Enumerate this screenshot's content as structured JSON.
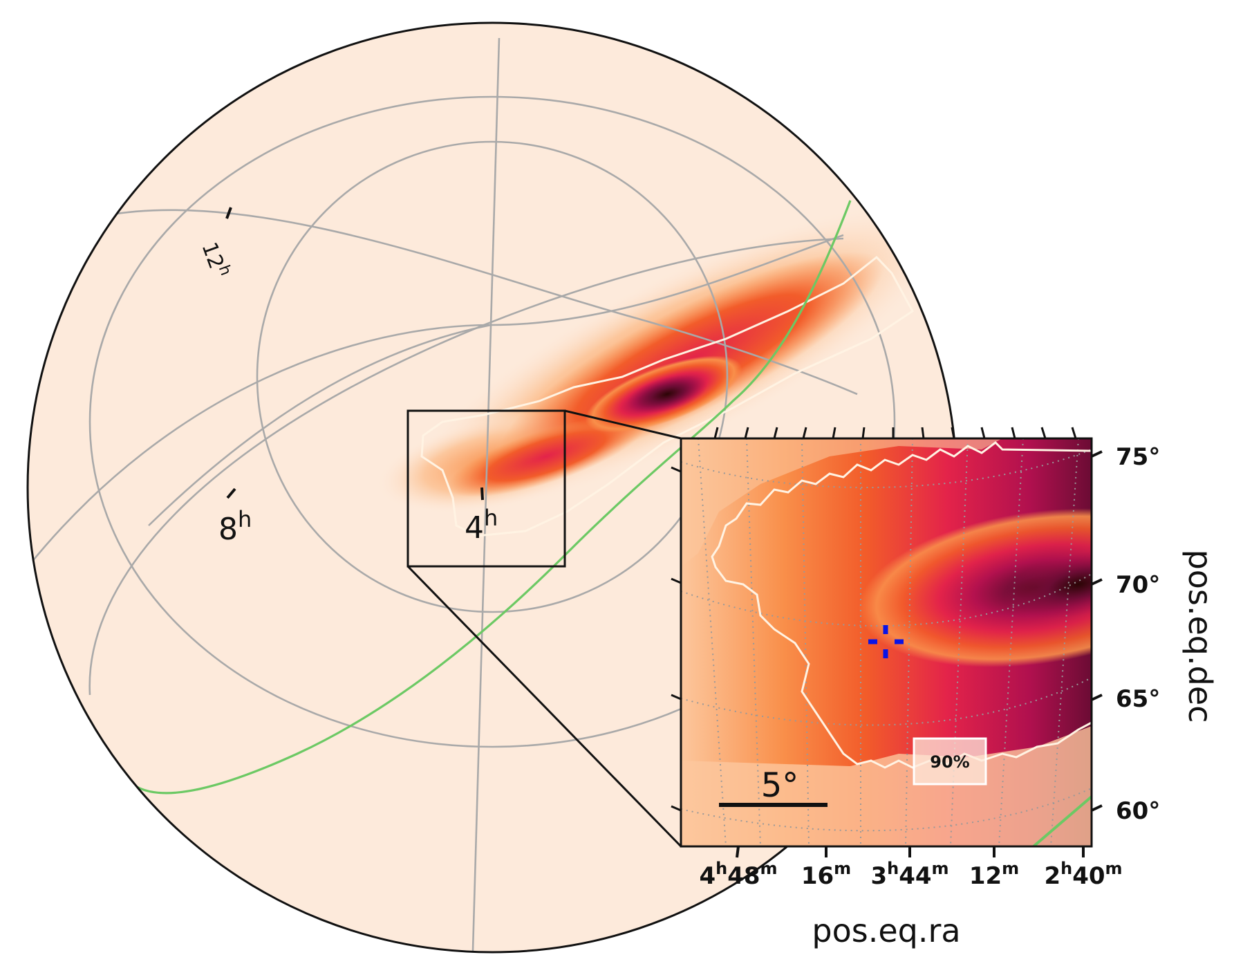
{
  "sky_map": {
    "ra_labels": {
      "h12": {
        "value": "12",
        "unit": "h"
      },
      "h8": {
        "value": "8",
        "unit": "h"
      },
      "h4": {
        "value": "4",
        "unit": "h"
      }
    },
    "colors": {
      "background": "#fdeadb",
      "grid": "#a9a9a9",
      "contour": "#fff3e3",
      "galactic_plane": "#6cc964",
      "frame": "#111111",
      "marker": "#0a14e6",
      "colormap": [
        "#fdeadb",
        "#fcc79d",
        "#f98f4a",
        "#f25c2a",
        "#e3234a",
        "#b0104e",
        "#6b0c34",
        "#2b0505"
      ]
    }
  },
  "inset": {
    "contour_label": "90%",
    "scale_bar_label": "5°",
    "xlabel": "pos.eq.ra",
    "ylabel": "pos.eq.dec",
    "ra_ticks": [
      {
        "h": "4",
        "m": "48"
      },
      {
        "h": "",
        "m": "16"
      },
      {
        "h": "3",
        "m": "44"
      },
      {
        "h": "",
        "m": "12"
      },
      {
        "h": "2",
        "m": "40"
      }
    ],
    "dec_ticks": [
      "75°",
      "70°",
      "65°",
      "60°"
    ],
    "marker_icon": "crosshair-icon"
  }
}
